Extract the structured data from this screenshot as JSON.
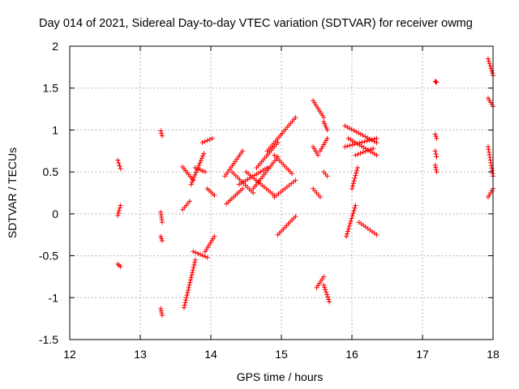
{
  "chart_data": {
    "type": "scatter",
    "title": "Day 014 of 2021, Sidereal Day-to-day VTEC variation (SDTVAR) for receiver owmg",
    "xlabel": "GPS time / hours",
    "ylabel": "SDTVAR / TECUs",
    "xlim": [
      12,
      18
    ],
    "ylim": [
      -1.5,
      2
    ],
    "xticks": [
      "12",
      "13",
      "14",
      "15",
      "16",
      "17",
      "18"
    ],
    "yticks": [
      "-1.5",
      "-1",
      "-0.5",
      "0",
      "0.5",
      "1",
      "1.5",
      "2"
    ],
    "grid": true,
    "series_color": "#ff0000",
    "marker": "plus",
    "segments": [
      {
        "x0": 12.68,
        "x1": 12.72,
        "y0": 0.64,
        "y1": 0.54
      },
      {
        "x0": 12.68,
        "x1": 12.72,
        "y0": -0.02,
        "y1": 0.1
      },
      {
        "x0": 12.68,
        "x1": 12.72,
        "y0": -0.6,
        "y1": -0.63
      },
      {
        "x0": 13.29,
        "x1": 13.31,
        "y0": 0.99,
        "y1": 0.93
      },
      {
        "x0": 13.29,
        "x1": 13.31,
        "y0": 0.02,
        "y1": -0.1
      },
      {
        "x0": 13.29,
        "x1": 13.31,
        "y0": -0.27,
        "y1": -0.32
      },
      {
        "x0": 13.29,
        "x1": 13.31,
        "y0": -1.13,
        "y1": -1.21
      },
      {
        "x0": 13.6,
        "x1": 13.75,
        "y0": 0.56,
        "y1": 0.4
      },
      {
        "x0": 13.6,
        "x1": 13.7,
        "y0": 0.05,
        "y1": 0.15
      },
      {
        "x0": 13.62,
        "x1": 13.78,
        "y0": -1.12,
        "y1": -0.55
      },
      {
        "x0": 13.72,
        "x1": 13.9,
        "y0": 0.35,
        "y1": 0.72
      },
      {
        "x0": 13.75,
        "x1": 13.95,
        "y0": -0.45,
        "y1": -0.52
      },
      {
        "x0": 13.78,
        "x1": 13.92,
        "y0": 0.55,
        "y1": 0.5
      },
      {
        "x0": 13.88,
        "x1": 14.02,
        "y0": 0.85,
        "y1": 0.9
      },
      {
        "x0": 13.95,
        "x1": 14.05,
        "y0": 0.3,
        "y1": 0.22
      },
      {
        "x0": 13.92,
        "x1": 14.05,
        "y0": -0.45,
        "y1": -0.27
      },
      {
        "x0": 14.2,
        "x1": 14.45,
        "y0": 0.45,
        "y1": 0.75
      },
      {
        "x0": 14.22,
        "x1": 14.45,
        "y0": 0.12,
        "y1": 0.3
      },
      {
        "x0": 14.3,
        "x1": 14.6,
        "y0": 0.5,
        "y1": 0.25
      },
      {
        "x0": 14.4,
        "x1": 14.8,
        "y0": 0.35,
        "y1": 0.55
      },
      {
        "x0": 14.5,
        "x1": 14.9,
        "y0": 0.5,
        "y1": 0.22
      },
      {
        "x0": 14.6,
        "x1": 14.95,
        "y0": 0.3,
        "y1": 0.68
      },
      {
        "x0": 14.65,
        "x1": 14.95,
        "y0": 0.55,
        "y1": 0.85
      },
      {
        "x0": 14.8,
        "x1": 15.2,
        "y0": 0.75,
        "y1": 1.15
      },
      {
        "x0": 14.9,
        "x1": 15.15,
        "y0": 0.7,
        "y1": 0.48
      },
      {
        "x0": 14.9,
        "x1": 15.2,
        "y0": 0.2,
        "y1": 0.4
      },
      {
        "x0": 14.95,
        "x1": 15.2,
        "y0": -0.25,
        "y1": -0.03
      },
      {
        "x0": 15.45,
        "x1": 15.6,
        "y0": 1.35,
        "y1": 1.15
      },
      {
        "x0": 15.6,
        "x1": 15.65,
        "y0": 1.1,
        "y1": 1.0
      },
      {
        "x0": 15.45,
        "x1": 15.52,
        "y0": 0.8,
        "y1": 0.7
      },
      {
        "x0": 15.55,
        "x1": 15.65,
        "y0": 0.75,
        "y1": 0.9
      },
      {
        "x0": 15.45,
        "x1": 15.55,
        "y0": 0.3,
        "y1": 0.2
      },
      {
        "x0": 15.6,
        "x1": 15.65,
        "y0": 0.5,
        "y1": 0.45
      },
      {
        "x0": 15.5,
        "x1": 15.6,
        "y0": -0.88,
        "y1": -0.75
      },
      {
        "x0": 15.6,
        "x1": 15.68,
        "y0": -0.85,
        "y1": -1.05
      },
      {
        "x0": 15.9,
        "x1": 16.35,
        "y0": 1.05,
        "y1": 0.85
      },
      {
        "x0": 15.9,
        "x1": 16.35,
        "y0": 0.8,
        "y1": 0.9
      },
      {
        "x0": 15.95,
        "x1": 16.35,
        "y0": 0.9,
        "y1": 0.7
      },
      {
        "x0": 16.05,
        "x1": 16.3,
        "y0": 0.7,
        "y1": 0.78
      },
      {
        "x0": 15.92,
        "x1": 16.05,
        "y0": -0.27,
        "y1": 0.1
      },
      {
        "x0": 16.0,
        "x1": 16.08,
        "y0": 0.3,
        "y1": 0.55
      },
      {
        "x0": 16.1,
        "x1": 16.35,
        "y0": -0.1,
        "y1": -0.25
      },
      {
        "x0": 17.18,
        "x1": 17.2,
        "y0": 1.58,
        "y1": 1.57
      },
      {
        "x0": 17.18,
        "x1": 17.2,
        "y0": 0.95,
        "y1": 0.9
      },
      {
        "x0": 17.18,
        "x1": 17.2,
        "y0": 0.75,
        "y1": 0.68
      },
      {
        "x0": 17.18,
        "x1": 17.2,
        "y0": 0.58,
        "y1": 0.5
      },
      {
        "x0": 17.93,
        "x1": 18.0,
        "y0": 1.85,
        "y1": 1.65
      },
      {
        "x0": 17.93,
        "x1": 18.0,
        "y0": 1.38,
        "y1": 1.28
      },
      {
        "x0": 17.93,
        "x1": 18.0,
        "y0": 0.8,
        "y1": 0.45
      },
      {
        "x0": 17.93,
        "x1": 18.0,
        "y0": 0.2,
        "y1": 0.3
      }
    ]
  }
}
